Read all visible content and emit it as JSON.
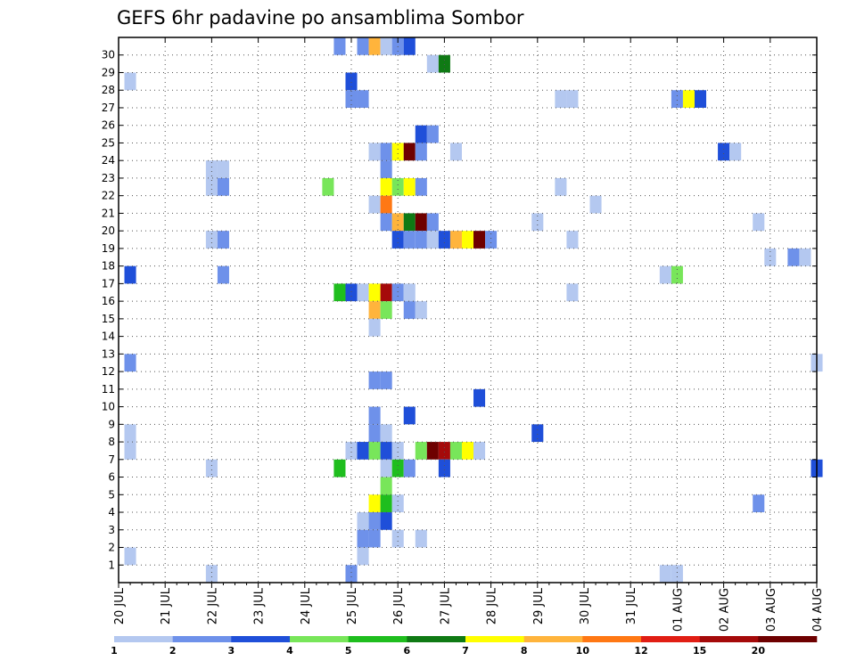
{
  "chart_data": {
    "type": "heatmap",
    "title": "GEFS 6hr padavine po ansamblima Sombor",
    "xlabel": "",
    "ylabel": "",
    "x_start": "2023-07-20T00",
    "x_end": "2023-08-04T00",
    "x_step_hours": 6,
    "x_tick_labels": [
      "20 JUL",
      "21 JUL",
      "22 JUL",
      "23 JUL",
      "24 JUL",
      "25 JUL",
      "26 JUL",
      "27 JUL",
      "28 JUL",
      "29 JUL",
      "30 JUL",
      "31 JUL",
      "01 AUG",
      "02 AUG",
      "03 AUG",
      "04 AUG"
    ],
    "y_tick_labels": [
      "1",
      "2",
      "3",
      "4",
      "5",
      "6",
      "7",
      "8",
      "9",
      "10",
      "11",
      "12",
      "13",
      "14",
      "15",
      "16",
      "17",
      "18",
      "19",
      "20",
      "21",
      "22",
      "23",
      "24",
      "25",
      "26",
      "27",
      "28",
      "29",
      "30"
    ],
    "ylim": [
      0,
      30
    ],
    "grid": true,
    "legend_position": "bottom",
    "colorbar": {
      "levels": [
        "1",
        "2",
        "3",
        "4",
        "5",
        "6",
        "7",
        "8",
        "10",
        "12",
        "15",
        "20"
      ],
      "colors": [
        "#b4c8f0",
        "#6e91ea",
        "#1f4fd9",
        "#78e65a",
        "#1fbe1e",
        "#0f7a14",
        "#ffff00",
        "#ffb43c",
        "#ff7814",
        "#e11e14",
        "#a50a0a",
        "#6e0000"
      ]
    },
    "cells": [
      {
        "t": "2023-07-24T18",
        "m": 30,
        "v": 2
      },
      {
        "t": "2023-07-25T06",
        "m": 30,
        "v": 2
      },
      {
        "t": "2023-07-25T12",
        "m": 30,
        "v": 9
      },
      {
        "t": "2023-07-25T18",
        "m": 30,
        "v": 1
      },
      {
        "t": "2023-07-26T00",
        "m": 30,
        "v": 2
      },
      {
        "t": "2023-07-26T06",
        "m": 30,
        "v": 3
      },
      {
        "t": "2023-07-26T18",
        "m": 29,
        "v": 1
      },
      {
        "t": "2023-07-27T00",
        "m": 29,
        "v": 6.5
      },
      {
        "t": "2023-07-20T06",
        "m": 28,
        "v": 1
      },
      {
        "t": "2023-07-25T00",
        "m": 28,
        "v": 3
      },
      {
        "t": "2023-07-25T00",
        "m": 27,
        "v": 2
      },
      {
        "t": "2023-07-25T06",
        "m": 27,
        "v": 2
      },
      {
        "t": "2023-07-29T12",
        "m": 27,
        "v": 1
      },
      {
        "t": "2023-07-29T18",
        "m": 27,
        "v": 1
      },
      {
        "t": "2023-08-01T00",
        "m": 27,
        "v": 2
      },
      {
        "t": "2023-08-01T06",
        "m": 27,
        "v": 7.5
      },
      {
        "t": "2023-08-01T12",
        "m": 27,
        "v": 3
      },
      {
        "t": "2023-07-26T12",
        "m": 25,
        "v": 3
      },
      {
        "t": "2023-07-26T18",
        "m": 25,
        "v": 2
      },
      {
        "t": "2023-07-25T12",
        "m": 24,
        "v": 1
      },
      {
        "t": "2023-07-25T18",
        "m": 24,
        "v": 2
      },
      {
        "t": "2023-07-26T00",
        "m": 24,
        "v": 7.5
      },
      {
        "t": "2023-07-26T06",
        "m": 24,
        "v": 25
      },
      {
        "t": "2023-07-26T12",
        "m": 24,
        "v": 2
      },
      {
        "t": "2023-07-27T06",
        "m": 24,
        "v": 1
      },
      {
        "t": "2023-08-02T00",
        "m": 24,
        "v": 3
      },
      {
        "t": "2023-08-02T06",
        "m": 24,
        "v": 1
      },
      {
        "t": "2023-07-22T00",
        "m": 23,
        "v": 1
      },
      {
        "t": "2023-07-22T06",
        "m": 23,
        "v": 1
      },
      {
        "t": "2023-07-25T18",
        "m": 23,
        "v": 2
      },
      {
        "t": "2023-07-22T00",
        "m": 22,
        "v": 1
      },
      {
        "t": "2023-07-22T06",
        "m": 22,
        "v": 2
      },
      {
        "t": "2023-07-24T12",
        "m": 22,
        "v": 4.5
      },
      {
        "t": "2023-07-25T18",
        "m": 22,
        "v": 7.5
      },
      {
        "t": "2023-07-26T00",
        "m": 22,
        "v": 4.5
      },
      {
        "t": "2023-07-26T06",
        "m": 22,
        "v": 7.5
      },
      {
        "t": "2023-07-26T12",
        "m": 22,
        "v": 2
      },
      {
        "t": "2023-07-29T12",
        "m": 22,
        "v": 1
      },
      {
        "t": "2023-07-25T12",
        "m": 21,
        "v": 1
      },
      {
        "t": "2023-07-25T18",
        "m": 21,
        "v": 11
      },
      {
        "t": "2023-07-30T06",
        "m": 21,
        "v": 1
      },
      {
        "t": "2023-07-25T18",
        "m": 20,
        "v": 2
      },
      {
        "t": "2023-07-26T00",
        "m": 20,
        "v": 9
      },
      {
        "t": "2023-07-26T06",
        "m": 20,
        "v": 6.5
      },
      {
        "t": "2023-07-26T12",
        "m": 20,
        "v": 25
      },
      {
        "t": "2023-07-26T18",
        "m": 20,
        "v": 2
      },
      {
        "t": "2023-07-29T00",
        "m": 20,
        "v": 1
      },
      {
        "t": "2023-08-02T18",
        "m": 20,
        "v": 1
      },
      {
        "t": "2023-07-22T00",
        "m": 19,
        "v": 1
      },
      {
        "t": "2023-07-22T06",
        "m": 19,
        "v": 2
      },
      {
        "t": "2023-07-26T00",
        "m": 19,
        "v": 3
      },
      {
        "t": "2023-07-26T06",
        "m": 19,
        "v": 2
      },
      {
        "t": "2023-07-26T12",
        "m": 19,
        "v": 2
      },
      {
        "t": "2023-07-26T18",
        "m": 19,
        "v": 1
      },
      {
        "t": "2023-07-27T00",
        "m": 19,
        "v": 3
      },
      {
        "t": "2023-07-27T06",
        "m": 19,
        "v": 9
      },
      {
        "t": "2023-07-27T12",
        "m": 19,
        "v": 7.5
      },
      {
        "t": "2023-07-27T18",
        "m": 19,
        "v": 25
      },
      {
        "t": "2023-07-28T00",
        "m": 19,
        "v": 2
      },
      {
        "t": "2023-07-29T18",
        "m": 19,
        "v": 1
      },
      {
        "t": "2023-08-03T00",
        "m": 18,
        "v": 1
      },
      {
        "t": "2023-08-03T12",
        "m": 18,
        "v": 2
      },
      {
        "t": "2023-08-03T18",
        "m": 18,
        "v": 1
      },
      {
        "t": "2023-07-20T06",
        "m": 17,
        "v": 3
      },
      {
        "t": "2023-07-22T06",
        "m": 17,
        "v": 2
      },
      {
        "t": "2023-07-31T18",
        "m": 17,
        "v": 1
      },
      {
        "t": "2023-08-01T00",
        "m": 17,
        "v": 4.5
      },
      {
        "t": "2023-07-24T18",
        "m": 16,
        "v": 5.5
      },
      {
        "t": "2023-07-25T00",
        "m": 16,
        "v": 3
      },
      {
        "t": "2023-07-25T06",
        "m": 16,
        "v": 1
      },
      {
        "t": "2023-07-25T12",
        "m": 16,
        "v": 7.5
      },
      {
        "t": "2023-07-25T18",
        "m": 16,
        "v": 17
      },
      {
        "t": "2023-07-26T00",
        "m": 16,
        "v": 2
      },
      {
        "t": "2023-07-26T06",
        "m": 16,
        "v": 1
      },
      {
        "t": "2023-07-29T18",
        "m": 16,
        "v": 1
      },
      {
        "t": "2023-07-25T12",
        "m": 15,
        "v": 9
      },
      {
        "t": "2023-07-25T18",
        "m": 15,
        "v": 4.5
      },
      {
        "t": "2023-07-26T06",
        "m": 15,
        "v": 2
      },
      {
        "t": "2023-07-26T12",
        "m": 15,
        "v": 1
      },
      {
        "t": "2023-07-25T12",
        "m": 14,
        "v": 1
      },
      {
        "t": "2023-07-20T06",
        "m": 12,
        "v": 2
      },
      {
        "t": "2023-08-04T00",
        "m": 12,
        "v": 1
      },
      {
        "t": "2023-07-25T12",
        "m": 11,
        "v": 2
      },
      {
        "t": "2023-07-25T18",
        "m": 11,
        "v": 2
      },
      {
        "t": "2023-07-27T18",
        "m": 10,
        "v": 3
      },
      {
        "t": "2023-07-25T12",
        "m": 9,
        "v": 2
      },
      {
        "t": "2023-07-26T06",
        "m": 9,
        "v": 3
      },
      {
        "t": "2023-07-20T06",
        "m": 8,
        "v": 1
      },
      {
        "t": "2023-07-25T12",
        "m": 8,
        "v": 2
      },
      {
        "t": "2023-07-25T18",
        "m": 8,
        "v": 1
      },
      {
        "t": "2023-07-29T00",
        "m": 8,
        "v": 3
      },
      {
        "t": "2023-07-20T06",
        "m": 7,
        "v": 1
      },
      {
        "t": "2023-07-25T00",
        "m": 7,
        "v": 1
      },
      {
        "t": "2023-07-25T06",
        "m": 7,
        "v": 3
      },
      {
        "t": "2023-07-25T12",
        "m": 7,
        "v": 4.5
      },
      {
        "t": "2023-07-25T18",
        "m": 7,
        "v": 3
      },
      {
        "t": "2023-07-26T00",
        "m": 7,
        "v": 1
      },
      {
        "t": "2023-07-26T12",
        "m": 7,
        "v": 4.5
      },
      {
        "t": "2023-07-26T18",
        "m": 7,
        "v": 25
      },
      {
        "t": "2023-07-27T00",
        "m": 7,
        "v": 17
      },
      {
        "t": "2023-07-27T06",
        "m": 7,
        "v": 4.5
      },
      {
        "t": "2023-07-27T12",
        "m": 7,
        "v": 7.5
      },
      {
        "t": "2023-07-27T18",
        "m": 7,
        "v": 1
      },
      {
        "t": "2023-07-22T00",
        "m": 6,
        "v": 1
      },
      {
        "t": "2023-07-24T18",
        "m": 6,
        "v": 5.5
      },
      {
        "t": "2023-07-25T18",
        "m": 6,
        "v": 1
      },
      {
        "t": "2023-07-26T00",
        "m": 6,
        "v": 5.5
      },
      {
        "t": "2023-07-26T06",
        "m": 6,
        "v": 2
      },
      {
        "t": "2023-07-27T00",
        "m": 6,
        "v": 3
      },
      {
        "t": "2023-08-04T00",
        "m": 6,
        "v": 3
      },
      {
        "t": "2023-07-25T18",
        "m": 5,
        "v": 4.5
      },
      {
        "t": "2023-07-25T12",
        "m": 4,
        "v": 7.5
      },
      {
        "t": "2023-07-25T18",
        "m": 4,
        "v": 5.5
      },
      {
        "t": "2023-07-26T00",
        "m": 4,
        "v": 1
      },
      {
        "t": "2023-08-02T18",
        "m": 4,
        "v": 2
      },
      {
        "t": "2023-07-25T06",
        "m": 3,
        "v": 1
      },
      {
        "t": "2023-07-25T12",
        "m": 3,
        "v": 2
      },
      {
        "t": "2023-07-25T18",
        "m": 3,
        "v": 3
      },
      {
        "t": "2023-07-25T06",
        "m": 2,
        "v": 2
      },
      {
        "t": "2023-07-25T12",
        "m": 2,
        "v": 2
      },
      {
        "t": "2023-07-26T00",
        "m": 2,
        "v": 1
      },
      {
        "t": "2023-07-26T12",
        "m": 2,
        "v": 1
      },
      {
        "t": "2023-07-20T06",
        "m": 1,
        "v": 1
      },
      {
        "t": "2023-07-25T06",
        "m": 1,
        "v": 1
      },
      {
        "t": "2023-07-22T00",
        "m": 0,
        "v": 1
      },
      {
        "t": "2023-07-25T00",
        "m": 0,
        "v": 2
      },
      {
        "t": "2023-07-31T18",
        "m": 0,
        "v": 1
      },
      {
        "t": "2023-08-01T00",
        "m": 0,
        "v": 1
      }
    ]
  }
}
